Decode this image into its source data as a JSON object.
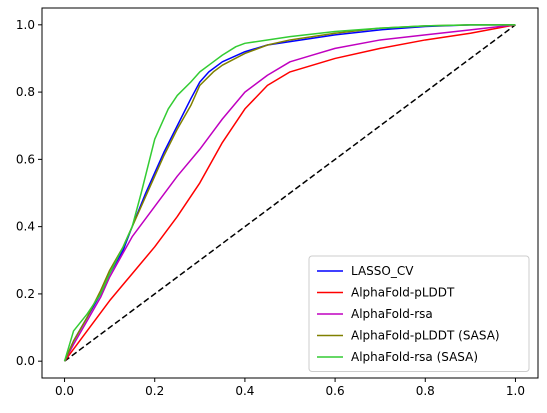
{
  "chart_data": {
    "type": "line",
    "title": "",
    "xlabel": "",
    "ylabel": "",
    "xlim": [
      -0.05,
      1.05
    ],
    "ylim": [
      -0.05,
      1.05
    ],
    "x_ticks": [
      0.0,
      0.2,
      0.4,
      0.6,
      0.8,
      1.0
    ],
    "x_tick_labels": [
      "0.0",
      "0.2",
      "0.4",
      "0.6",
      "0.8",
      "1.0"
    ],
    "y_ticks": [
      0.0,
      0.2,
      0.4,
      0.6,
      0.8,
      1.0
    ],
    "y_tick_labels": [
      "0.0",
      "0.2",
      "0.4",
      "0.6",
      "0.8",
      "1.0"
    ],
    "grid": false,
    "legend_position": "lower-right",
    "reference_line": {
      "x": [
        0,
        1
      ],
      "y": [
        0,
        1
      ],
      "color": "#000000",
      "style": "dashed"
    },
    "series": [
      {
        "name": "LASSO_CV",
        "color": "#0000ff",
        "x": [
          0,
          0.02,
          0.05,
          0.08,
          0.1,
          0.13,
          0.15,
          0.18,
          0.2,
          0.22,
          0.25,
          0.28,
          0.3,
          0.32,
          0.35,
          0.4,
          0.45,
          0.5,
          0.6,
          0.7,
          0.8,
          0.9,
          1.0
        ],
        "y": [
          0,
          0.06,
          0.13,
          0.2,
          0.26,
          0.33,
          0.4,
          0.5,
          0.56,
          0.62,
          0.7,
          0.78,
          0.83,
          0.86,
          0.89,
          0.92,
          0.94,
          0.95,
          0.97,
          0.985,
          0.995,
          1.0,
          1.0
        ]
      },
      {
        "name": "AlphaFold-pLDDT",
        "color": "#ff0000",
        "x": [
          0,
          0.05,
          0.1,
          0.15,
          0.2,
          0.25,
          0.3,
          0.35,
          0.4,
          0.45,
          0.5,
          0.55,
          0.6,
          0.7,
          0.8,
          0.9,
          1.0
        ],
        "y": [
          0,
          0.09,
          0.18,
          0.26,
          0.34,
          0.43,
          0.53,
          0.65,
          0.75,
          0.82,
          0.86,
          0.88,
          0.9,
          0.93,
          0.955,
          0.975,
          1.0
        ]
      },
      {
        "name": "AlphaFold-rsa",
        "color": "#c000c0",
        "x": [
          0,
          0.02,
          0.05,
          0.08,
          0.1,
          0.15,
          0.2,
          0.25,
          0.3,
          0.35,
          0.4,
          0.45,
          0.5,
          0.55,
          0.6,
          0.7,
          0.8,
          0.9,
          1.0
        ],
        "y": [
          0,
          0.05,
          0.12,
          0.19,
          0.25,
          0.37,
          0.46,
          0.55,
          0.63,
          0.72,
          0.8,
          0.85,
          0.89,
          0.91,
          0.93,
          0.955,
          0.97,
          0.985,
          1.0
        ]
      },
      {
        "name": "AlphaFold-pLDDT (SASA)",
        "color": "#808000",
        "x": [
          0,
          0.02,
          0.05,
          0.08,
          0.1,
          0.13,
          0.15,
          0.18,
          0.2,
          0.22,
          0.25,
          0.28,
          0.3,
          0.33,
          0.35,
          0.4,
          0.45,
          0.5,
          0.6,
          0.7,
          0.8,
          0.9,
          1.0
        ],
        "y": [
          0,
          0.06,
          0.13,
          0.21,
          0.27,
          0.34,
          0.4,
          0.49,
          0.55,
          0.61,
          0.69,
          0.76,
          0.82,
          0.86,
          0.88,
          0.915,
          0.94,
          0.955,
          0.975,
          0.99,
          0.997,
          1.0,
          1.0
        ]
      },
      {
        "name": "AlphaFold-rsa (SASA)",
        "color": "#33cc33",
        "x": [
          0,
          0.02,
          0.05,
          0.08,
          0.1,
          0.13,
          0.15,
          0.17,
          0.2,
          0.23,
          0.25,
          0.28,
          0.3,
          0.33,
          0.35,
          0.38,
          0.4,
          0.45,
          0.5,
          0.6,
          0.7,
          0.8,
          0.9,
          1.0
        ],
        "y": [
          0,
          0.09,
          0.14,
          0.2,
          0.26,
          0.34,
          0.4,
          0.5,
          0.66,
          0.75,
          0.79,
          0.83,
          0.86,
          0.89,
          0.91,
          0.935,
          0.945,
          0.955,
          0.965,
          0.98,
          0.99,
          0.997,
          1.0,
          1.0
        ]
      }
    ]
  }
}
